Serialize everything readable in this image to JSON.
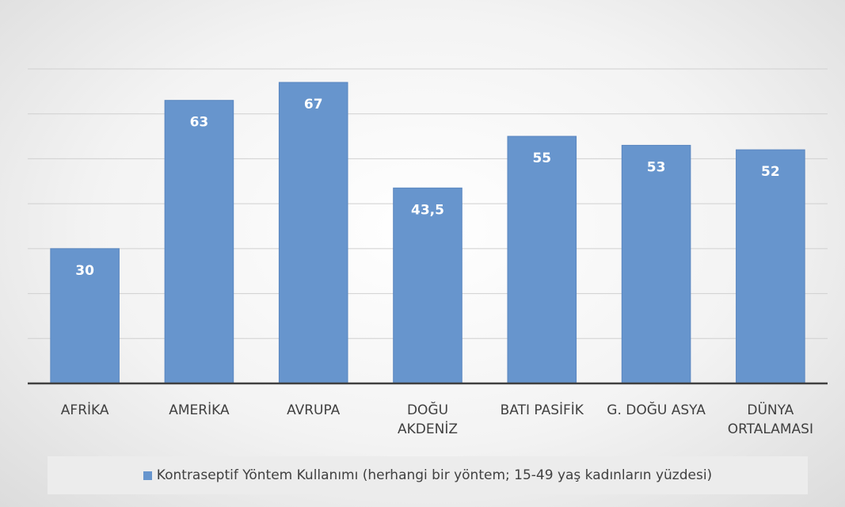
{
  "chart_data": {
    "type": "bar",
    "categories": [
      "AFRİKA",
      "AMERİKA",
      "AVRUPA",
      "DOĞU\nAKDENİZ",
      "BATI PASİFİK",
      "G. DOĞU ASYA",
      "DÜNYA\nORTALAMASI"
    ],
    "series": [
      {
        "name": "Kontraseptif Yöntem Kullanımı (herhangi bir yöntem; 15-49 yaş kadınların yüzdesi)",
        "color": "#6795cd",
        "values": [
          30,
          63,
          67,
          43.5,
          55,
          53,
          52
        ],
        "value_labels": [
          "30",
          "63",
          "67",
          "43,5",
          "55",
          "53",
          "52"
        ]
      }
    ],
    "ylim": [
      0,
      70
    ],
    "yticks": [
      0,
      10,
      20,
      30,
      40,
      50,
      60,
      70
    ],
    "grid": true,
    "legend": "bottom"
  }
}
